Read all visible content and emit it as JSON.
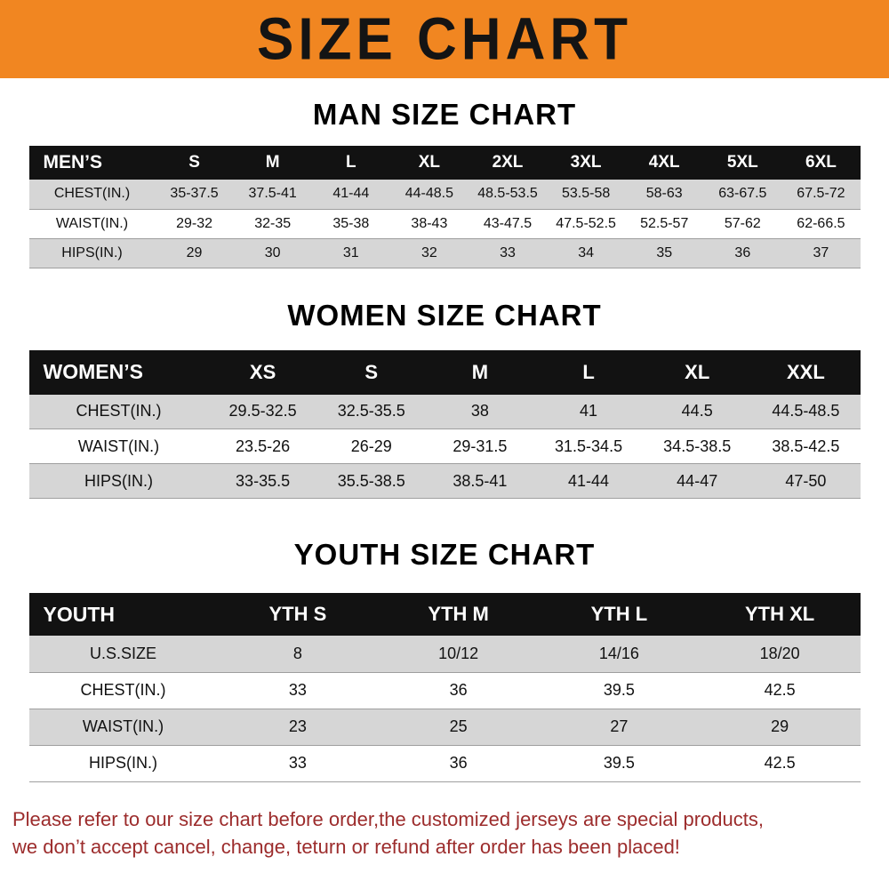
{
  "banner": {
    "title": "SIZE CHART"
  },
  "men": {
    "heading": "MAN SIZE CHART",
    "header": [
      "MEN’S",
      "S",
      "M",
      "L",
      "XL",
      "2XL",
      "3XL",
      "4XL",
      "5XL",
      "6XL"
    ],
    "rows": [
      [
        "CHEST(IN.)",
        "35-37.5",
        "37.5-41",
        "41-44",
        "44-48.5",
        "48.5-53.5",
        "53.5-58",
        "58-63",
        "63-67.5",
        "67.5-72"
      ],
      [
        "WAIST(IN.)",
        "29-32",
        "32-35",
        "35-38",
        "38-43",
        "43-47.5",
        "47.5-52.5",
        "52.5-57",
        "57-62",
        "62-66.5"
      ],
      [
        "HIPS(IN.)",
        "29",
        "30",
        "31",
        "32",
        "33",
        "34",
        "35",
        "36",
        "37"
      ]
    ]
  },
  "women": {
    "heading": "WOMEN SIZE CHART",
    "header": [
      "WOMEN’S",
      "XS",
      "S",
      "M",
      "L",
      "XL",
      "XXL"
    ],
    "rows": [
      [
        "CHEST(IN.)",
        "29.5-32.5",
        "32.5-35.5",
        "38",
        "41",
        "44.5",
        "44.5-48.5"
      ],
      [
        "WAIST(IN.)",
        "23.5-26",
        "26-29",
        "29-31.5",
        "31.5-34.5",
        "34.5-38.5",
        "38.5-42.5"
      ],
      [
        "HIPS(IN.)",
        "33-35.5",
        "35.5-38.5",
        "38.5-41",
        "41-44",
        "44-47",
        "47-50"
      ]
    ]
  },
  "youth": {
    "heading": "YOUTH SIZE CHART",
    "header": [
      "YOUTH",
      "YTH S",
      "YTH M",
      "YTH L",
      "YTH XL"
    ],
    "rows": [
      [
        "U.S.SIZE",
        "8",
        "10/12",
        "14/16",
        "18/20"
      ],
      [
        "CHEST(IN.)",
        "33",
        "36",
        "39.5",
        "42.5"
      ],
      [
        "WAIST(IN.)",
        "23",
        "25",
        "27",
        "29"
      ],
      [
        "HIPS(IN.)",
        "33",
        "36",
        "39.5",
        "42.5"
      ]
    ]
  },
  "disclaimer": {
    "line1": "Please refer to our size chart before order,the customized jerseys are special products,",
    "line2": "we don’t accept cancel, change, teturn or refund after order has been placed!"
  },
  "colors": {
    "banner_bg": "#f18621",
    "table_header_bg": "#121212",
    "row_stripe_bg": "#d6d6d6",
    "disclaimer_text": "#9c2c2c"
  }
}
